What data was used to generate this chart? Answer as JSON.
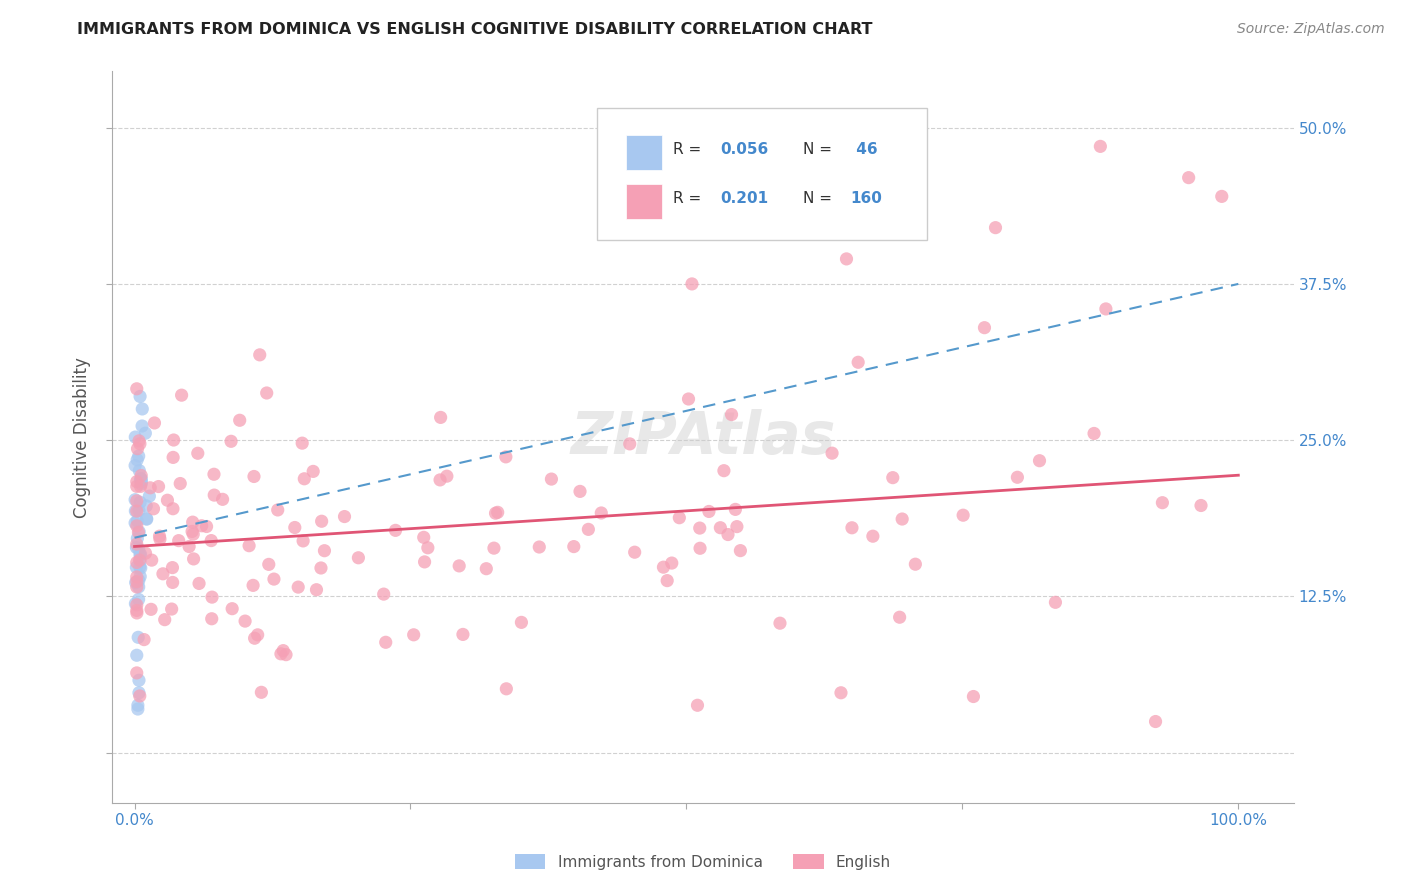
{
  "title": "IMMIGRANTS FROM DOMINICA VS ENGLISH COGNITIVE DISABILITY CORRELATION CHART",
  "source": "Source: ZipAtlas.com",
  "ylabel": "Cognitive Disability",
  "ytick_vals": [
    0.0,
    0.125,
    0.25,
    0.375,
    0.5
  ],
  "ytick_labels": [
    "",
    "12.5%",
    "25.0%",
    "37.5%",
    "50.0%"
  ],
  "xlim": [
    -0.02,
    1.05
  ],
  "ylim": [
    -0.04,
    0.545
  ],
  "color_blue": "#A8C8F0",
  "color_pink": "#F5A0B5",
  "color_line_blue": "#5599CC",
  "color_line_pink": "#E05575",
  "color_title": "#222222",
  "color_source": "#888888",
  "color_axis_label": "#555555",
  "color_tick_label": "#4488CC",
  "color_grid": "#CCCCCC",
  "watermark": "ZIPAtlas",
  "blue_trend": [
    0.172,
    0.375
  ],
  "pink_trend": [
    0.165,
    0.222
  ]
}
